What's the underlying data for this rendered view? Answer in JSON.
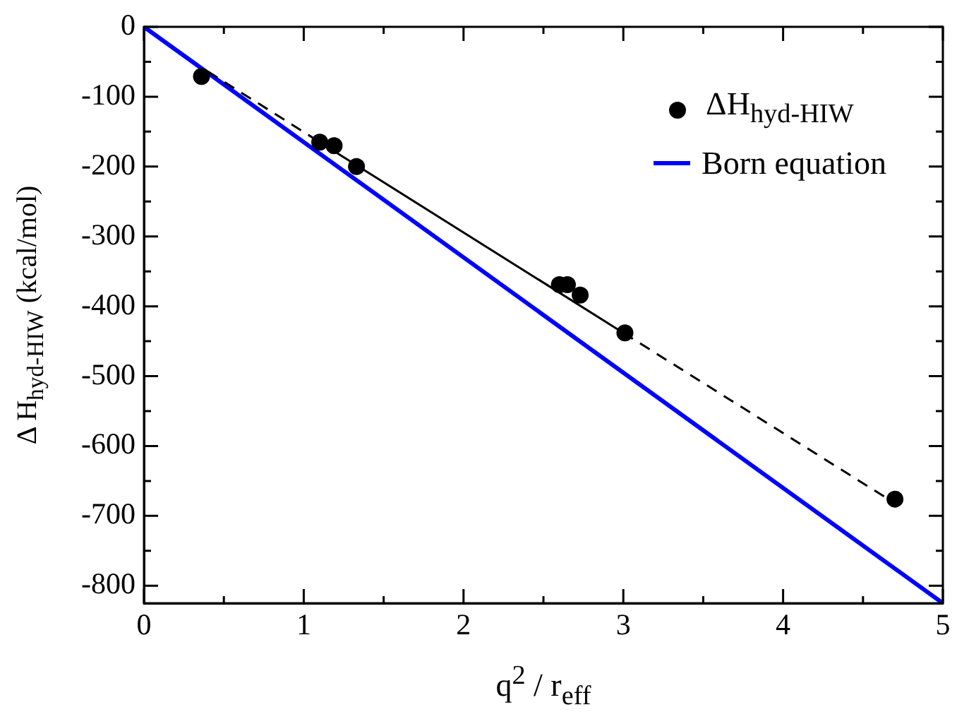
{
  "chart_data": {
    "type": "scatter",
    "xlabel": "q$^{2}$ / r$_{eff}$",
    "ylabel": "Δ H$_{hyd-HIW}$ (kcal/mol)",
    "xlim": [
      0,
      5
    ],
    "ylim": [
      -825,
      0
    ],
    "xticks": [
      0,
      {
        "value": 0.5,
        "label": null
      },
      1,
      {
        "value": 1.5,
        "label": null
      },
      2,
      {
        "value": 2.5,
        "label": null
      },
      3,
      {
        "value": 3.5,
        "label": null
      },
      4,
      {
        "value": 4.5,
        "label": null
      },
      5
    ],
    "yticks": [
      0,
      {
        "value": -50,
        "label": null
      },
      -100,
      {
        "value": -150,
        "label": null
      },
      -200,
      {
        "value": -250,
        "label": null
      },
      -300,
      {
        "value": -350,
        "label": null
      },
      -400,
      {
        "value": -450,
        "label": null
      },
      -500,
      {
        "value": -550,
        "label": null
      },
      -600,
      {
        "value": -650,
        "label": null
      },
      -700,
      {
        "value": -750,
        "label": null
      },
      -800
    ],
    "grid": false,
    "legend": "top right",
    "series": [
      {
        "name": "ΔH$_{hyd-HIW}$",
        "type": "scatter",
        "marker": "circle",
        "color": "#000000",
        "x": [
          0.36,
          1.1,
          1.19,
          1.33,
          2.6,
          2.65,
          2.73,
          3.01,
          4.7
        ],
        "values": [
          -71,
          -165,
          -170,
          -200,
          -369,
          -369,
          -384,
          -438,
          -676
        ]
      },
      {
        "type": "line",
        "marker": "none",
        "line_style": "solid",
        "color": "#000000",
        "x": [
          1.1,
          3.0
        ],
        "values": [
          -165,
          -438
        ]
      },
      {
        "type": "line",
        "marker": "none",
        "line_style": "dashed",
        "color": "#000000",
        "x": [
          0.4,
          1.1,
          2,
          3.0,
          4.7
        ],
        "values": [
          -64,
          -165,
          null,
          -438,
          -682
        ]
      },
      {
        "name": "Born equation",
        "type": "line",
        "marker": "none",
        "line_style": "solid",
        "color": "#0000ff",
        "x": [
          0,
          5
        ],
        "values": [
          0,
          -825
        ]
      }
    ]
  }
}
